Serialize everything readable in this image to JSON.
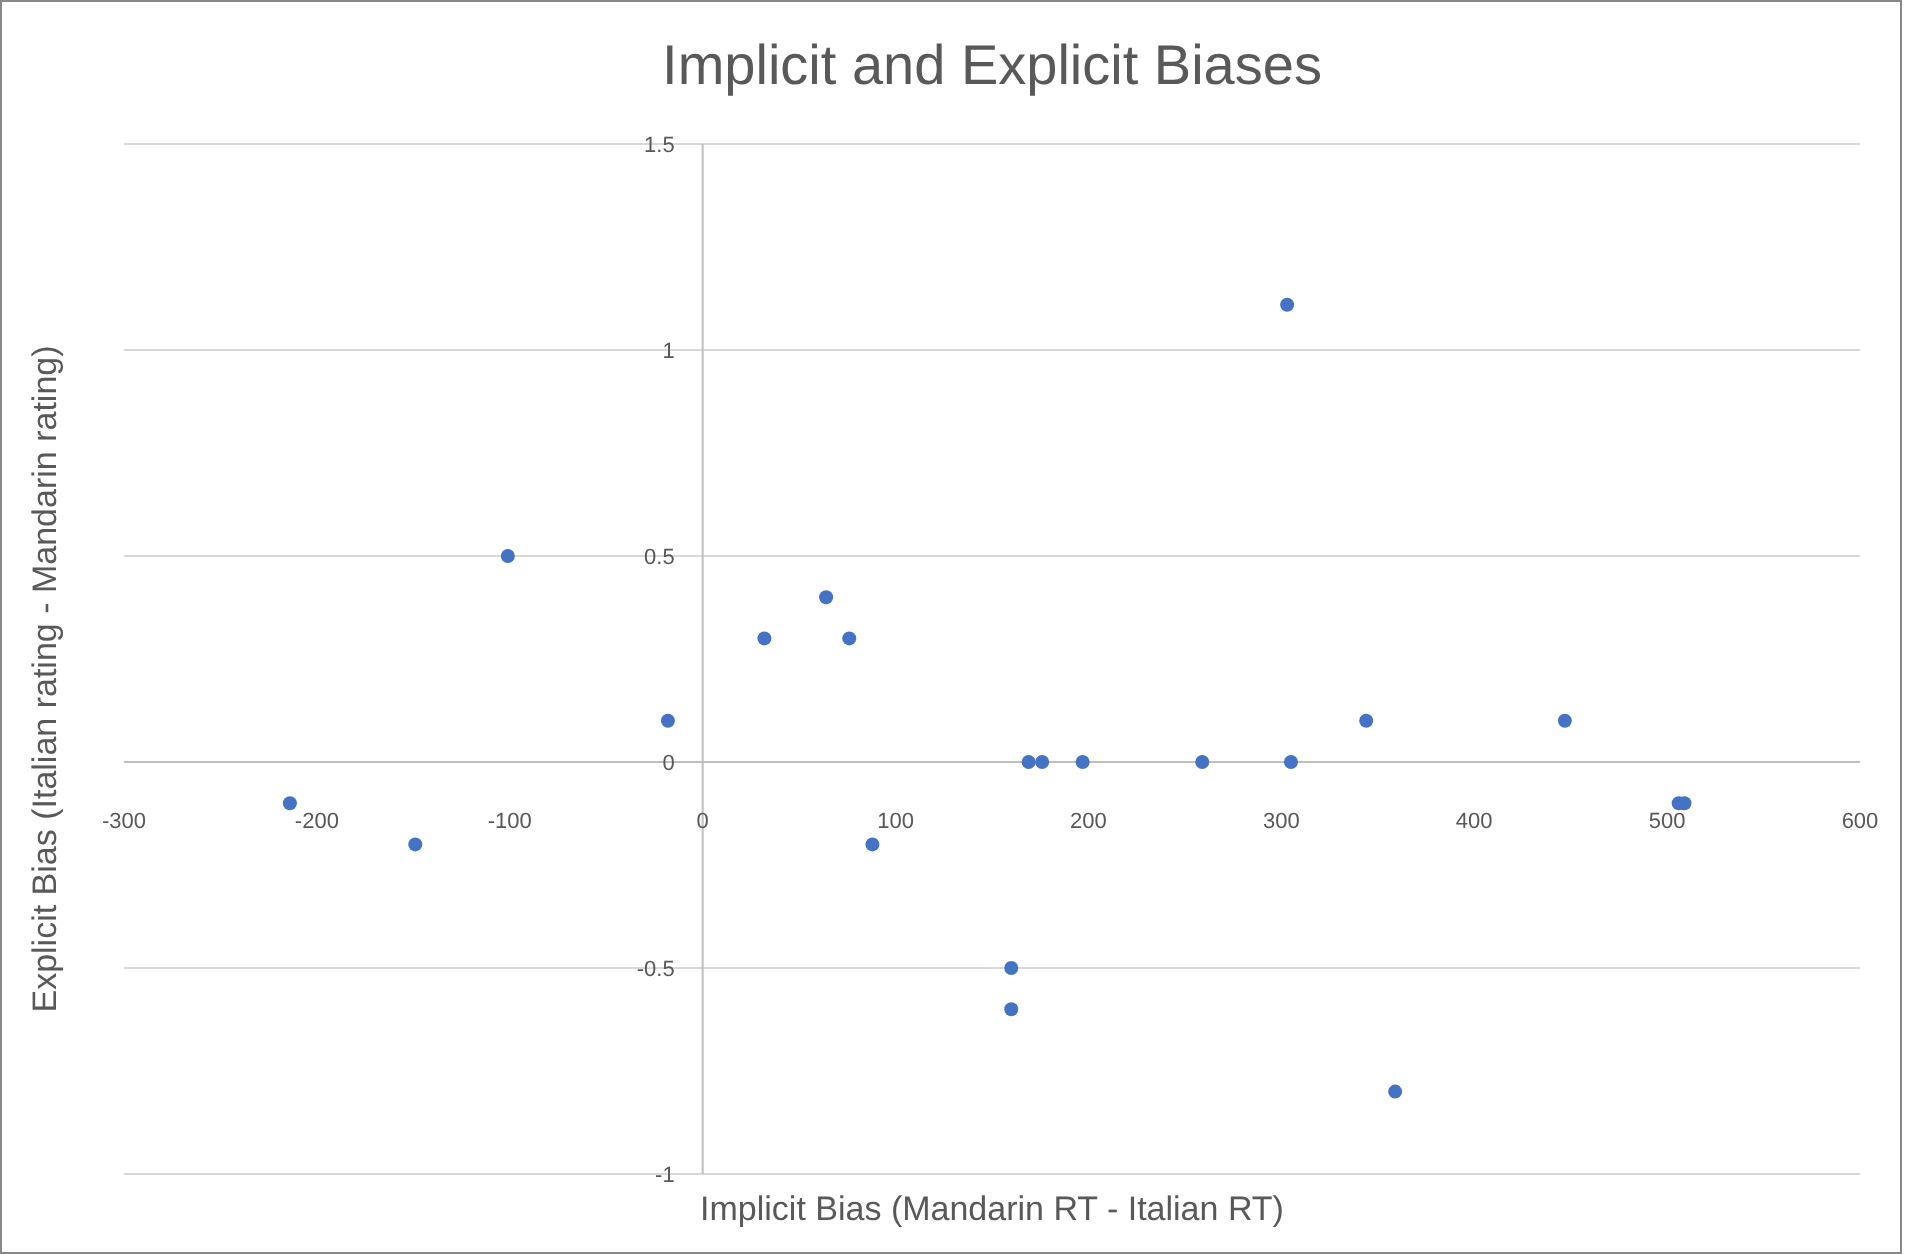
{
  "chart_data": {
    "type": "scatter",
    "title": "Implicit and Explicit Biases",
    "xlabel": "Implicit Bias (Mandarin RT - Italian RT)",
    "ylabel": "Explicit Bias (Italian rating - Mandarin rating)",
    "x": [
      -214,
      -149,
      -101,
      -18,
      32,
      64,
      76,
      88,
      160,
      160,
      169,
      176,
      197,
      259,
      303,
      305,
      344,
      359,
      447,
      506,
      509
    ],
    "series": [
      {
        "color": "#4472c4",
        "values": [
          -0.1,
          -0.2,
          0.5,
          0.1,
          0.3,
          0.4,
          0.3,
          -0.2,
          -0.5,
          -0.6,
          0,
          0,
          0,
          0,
          1.11,
          0,
          0.1,
          -0.8,
          0.1,
          -0.1,
          -0.1
        ]
      }
    ],
    "xlim": [
      -300,
      600
    ],
    "xticks": [
      -300,
      -200,
      -100,
      0,
      100,
      200,
      300,
      400,
      500,
      600
    ],
    "ylim": [
      -1,
      1.5
    ],
    "yticks": [
      -1,
      -0.5,
      0,
      0.5,
      1,
      1.5
    ],
    "grid": "y",
    "marker": "circle"
  }
}
